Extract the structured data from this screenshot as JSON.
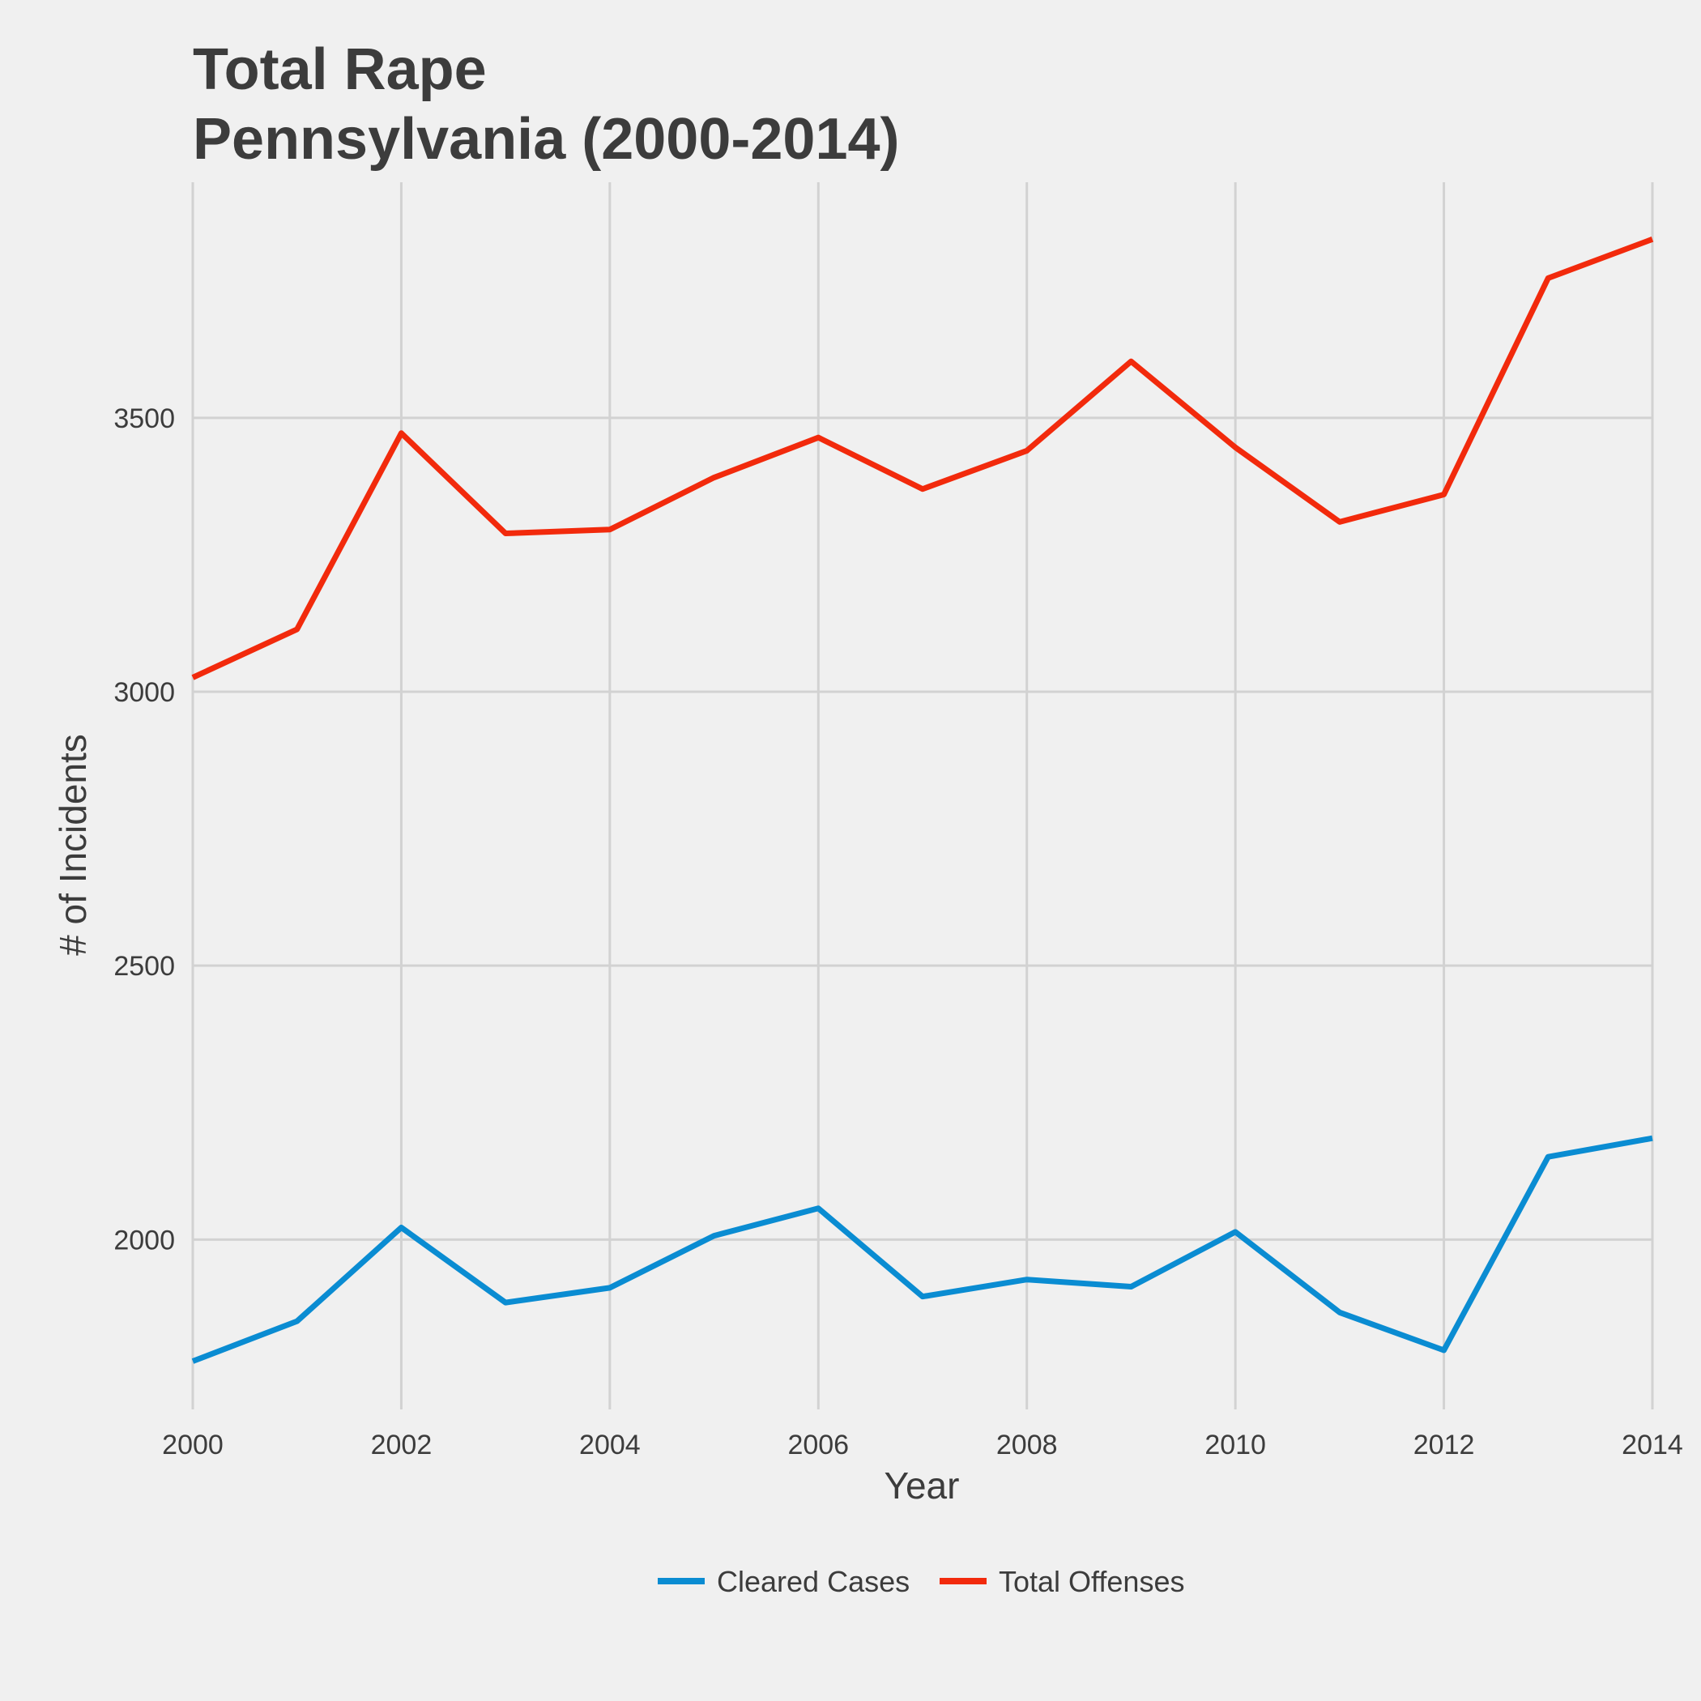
{
  "chart_data": {
    "type": "line",
    "title": [
      "Total Rape",
      "Pennsylvania (2000-2014)"
    ],
    "xlabel": "Year",
    "ylabel": "# of Incidents",
    "x": [
      2000,
      2001,
      2002,
      2003,
      2004,
      2005,
      2006,
      2007,
      2008,
      2009,
      2010,
      2011,
      2012,
      2013,
      2014
    ],
    "xlim": [
      2000,
      2014
    ],
    "ylim": [
      1690,
      3930
    ],
    "x_ticks": [
      2000,
      2002,
      2004,
      2006,
      2008,
      2010,
      2012,
      2014
    ],
    "y_ticks": [
      2000,
      2500,
      3000,
      3500
    ],
    "grid": true,
    "legend_position": "bottom",
    "series": [
      {
        "name": "Cleared Cases",
        "color": "#0a8cd2",
        "values": [
          1778,
          1851,
          2022,
          1885,
          1912,
          2007,
          2057,
          1896,
          1927,
          1914,
          2014,
          1867,
          1798,
          2151,
          2185
        ]
      },
      {
        "name": "Total Offenses",
        "color": "#f22a0c",
        "values": [
          3026,
          3114,
          3472,
          3289,
          3296,
          3391,
          3464,
          3370,
          3440,
          3603,
          3446,
          3310,
          3360,
          3755,
          3826
        ]
      }
    ]
  }
}
